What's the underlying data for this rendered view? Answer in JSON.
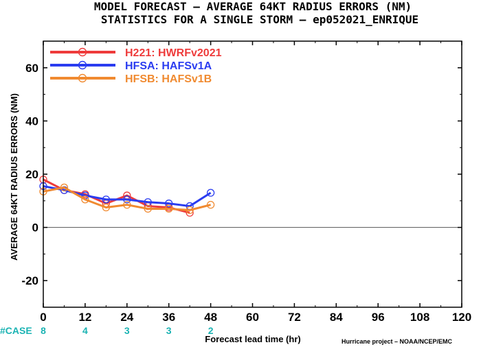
{
  "chart_data": {
    "type": "line",
    "title_line1": "MODEL FORECAST – AVERAGE 64KT RADIUS ERRORS (NM)",
    "title_line2": "STATISTICS FOR A SINGLE STORM – ep052021_ENRIQUE",
    "xlabel": "Forecast lead time (hr)",
    "ylabel": "AVERAGE 64KT RADIUS ERRORS (NM)",
    "xlim": [
      0,
      120
    ],
    "ylim": [
      -30,
      70
    ],
    "xticks": [
      0,
      12,
      24,
      36,
      48,
      60,
      72,
      84,
      96,
      108,
      120
    ],
    "yticks": [
      -20,
      0,
      20,
      40,
      60
    ],
    "zero_line": true,
    "legend_position": "top-left",
    "series": [
      {
        "name": "H221: HWRFv2021",
        "color": "#ee3b3b",
        "x": [
          0,
          6,
          12,
          18,
          24,
          30,
          36,
          42
        ],
        "y": [
          18,
          14,
          12.5,
          9,
          12,
          8,
          7.5,
          5.5
        ]
      },
      {
        "name": "HFSA: HAFSv1A",
        "color": "#2a3cf0",
        "x": [
          0,
          6,
          12,
          18,
          24,
          30,
          36,
          42,
          48
        ],
        "y": [
          15.5,
          14,
          12,
          10.5,
          10.5,
          9.5,
          9,
          8,
          13
        ]
      },
      {
        "name": "HFSB: HAFSv1B",
        "color": "#f08a30",
        "x": [
          0,
          6,
          12,
          18,
          24,
          30,
          36,
          42,
          48
        ],
        "y": [
          13.5,
          15,
          10.5,
          7.5,
          8.5,
          7,
          7,
          6.5,
          8.5
        ]
      }
    ],
    "case_label": "#CASE",
    "cases": [
      {
        "x": 0,
        "n": "8"
      },
      {
        "x": 12,
        "n": "4"
      },
      {
        "x": 24,
        "n": "3"
      },
      {
        "x": 36,
        "n": "3"
      },
      {
        "x": 48,
        "n": "2"
      }
    ],
    "case_color": "#1bb3b3",
    "credit": "Hurricane project – NOAA/NCEP/EMC"
  }
}
